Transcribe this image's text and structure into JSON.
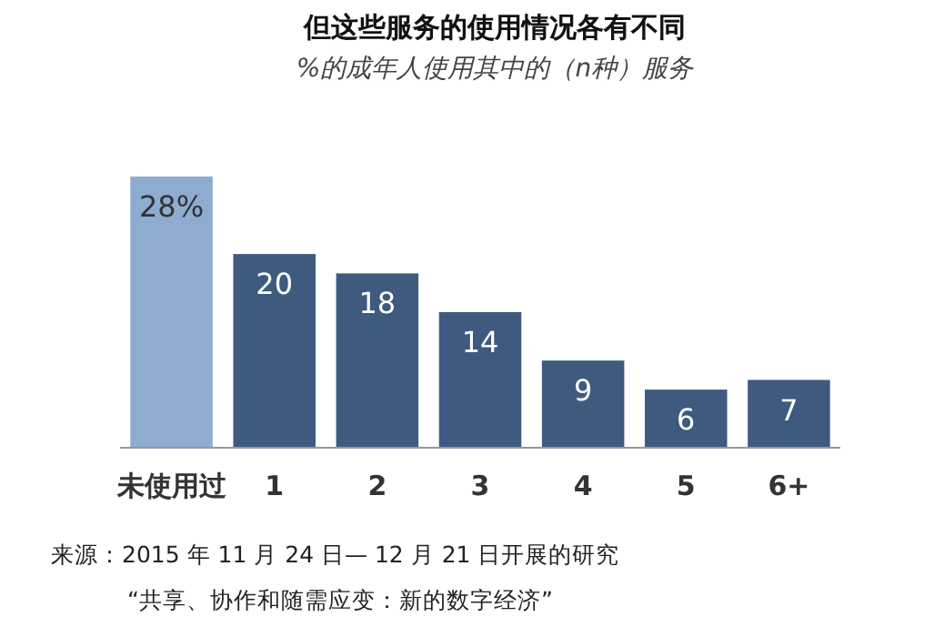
{
  "chart_data": {
    "type": "bar",
    "title": "但这些服务的使用情况各有不同",
    "subtitle": "%的成年人使用其中的（n种）服务",
    "categories": [
      "未使用过",
      "1",
      "2",
      "3",
      "4",
      "5",
      "6+"
    ],
    "values": [
      28,
      20,
      18,
      14,
      9,
      6,
      7
    ],
    "colors": [
      "#8eabd0",
      "#3e5a7f",
      "#3e5a7f",
      "#3e5a7f",
      "#3e5a7f",
      "#3e5a7f",
      "#3e5a7f"
    ],
    "value_labels": [
      "28%",
      "20",
      "18",
      "14",
      "9",
      "6",
      "7"
    ],
    "annotations": [
      "来源：2015 年 11 月 24 日— 12 月 21 日开展的研究",
      "“共享、协作和随需应变：新的数字经济”"
    ]
  }
}
